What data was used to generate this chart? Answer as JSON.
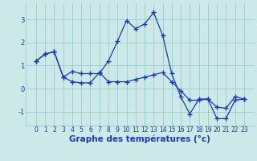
{
  "title": "",
  "xlabel": "Graphe des températures (°c)",
  "ylabel": "",
  "background_color": "#cce8e8",
  "line_color": "#1a3aad",
  "grid_color": "#99cccc",
  "series1_x": [
    0,
    1,
    2,
    3,
    4,
    5,
    6,
    7,
    8,
    9,
    10,
    11,
    12,
    13,
    14,
    15,
    16,
    17,
    18,
    19,
    20,
    21,
    22,
    23
  ],
  "series1_y": [
    1.2,
    1.5,
    1.6,
    0.5,
    0.75,
    0.65,
    0.65,
    0.65,
    1.2,
    2.05,
    2.95,
    2.6,
    2.8,
    3.3,
    2.3,
    0.65,
    -0.35,
    -1.1,
    -0.45,
    -0.45,
    -1.3,
    -1.3,
    -0.5,
    -0.45
  ],
  "series2_x": [
    0,
    1,
    2,
    3,
    4,
    5,
    6,
    7,
    8,
    9,
    10,
    11,
    12,
    13,
    14,
    15,
    16,
    17,
    18,
    19,
    20,
    21,
    22,
    23
  ],
  "series2_y": [
    1.2,
    1.5,
    1.6,
    0.5,
    0.3,
    0.25,
    0.25,
    0.7,
    0.3,
    0.3,
    0.3,
    0.4,
    0.5,
    0.6,
    0.7,
    0.3,
    -0.1,
    -0.5,
    -0.5,
    -0.45,
    -0.8,
    -0.85,
    -0.35,
    -0.45
  ],
  "ylim": [
    -1.6,
    3.7
  ],
  "yticks": [
    -1,
    0,
    1,
    2,
    3
  ],
  "xticks": [
    0,
    1,
    2,
    3,
    4,
    5,
    6,
    7,
    8,
    9,
    10,
    11,
    12,
    13,
    14,
    15,
    16,
    17,
    18,
    19,
    20,
    21,
    22,
    23
  ],
  "marker": "+",
  "linewidth": 0.9,
  "markersize": 4,
  "tick_fontsize": 5.5,
  "label_fontsize": 7.5
}
